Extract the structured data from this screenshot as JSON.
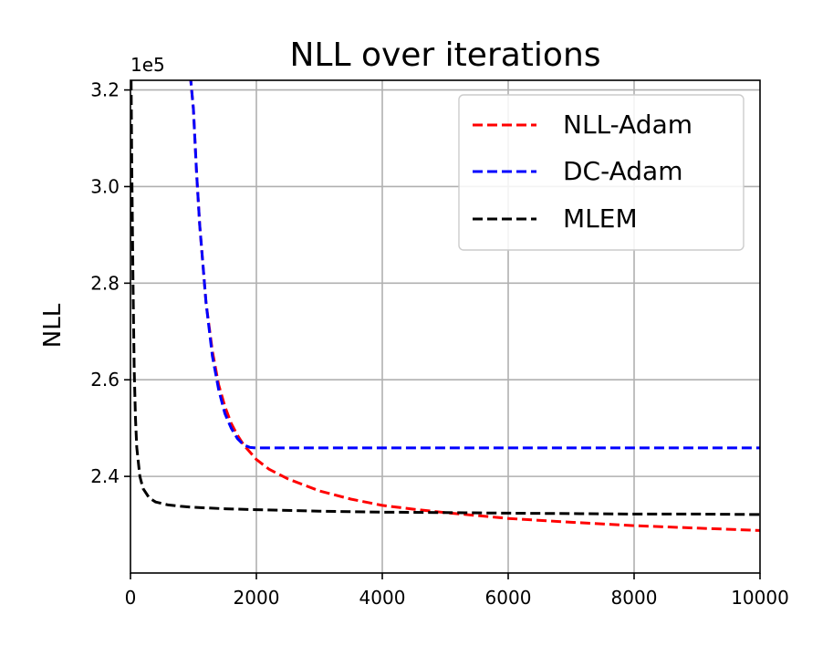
{
  "chart_data": {
    "type": "line",
    "title": "NLL over iterations",
    "xlabel": "",
    "ylabel": "NLL",
    "y_offset_label": "1e5",
    "xlim": [
      0,
      10000
    ],
    "ylim": [
      2.2,
      3.22
    ],
    "xticks": [
      0,
      2000,
      4000,
      6000,
      8000,
      10000
    ],
    "xtick_labels": [
      "0",
      "2000",
      "4000",
      "6000",
      "8000",
      "10000"
    ],
    "yticks": [
      2.4,
      2.6,
      2.8,
      3.0,
      3.2
    ],
    "ytick_labels": [
      "2.4",
      "2.6",
      "2.8",
      "3.0",
      "3.2"
    ],
    "grid": true,
    "legend_position": "top-right",
    "series": [
      {
        "name": "NLL-Adam",
        "color": "#ff0000",
        "dash": "dashed",
        "x": [
          950,
          1000,
          1050,
          1100,
          1200,
          1300,
          1400,
          1500,
          1600,
          1700,
          1800,
          2000,
          2200,
          2500,
          3000,
          3500,
          4000,
          4500,
          5000,
          5500,
          6000,
          7000,
          8000,
          9000,
          10000
        ],
        "y": [
          3.23,
          3.16,
          3.03,
          2.92,
          2.76,
          2.66,
          2.59,
          2.545,
          2.51,
          2.485,
          2.465,
          2.435,
          2.415,
          2.395,
          2.37,
          2.353,
          2.34,
          2.332,
          2.325,
          2.319,
          2.313,
          2.305,
          2.298,
          2.293,
          2.288
        ]
      },
      {
        "name": "DC-Adam",
        "color": "#0000ff",
        "dash": "dashed",
        "x": [
          950,
          1000,
          1050,
          1100,
          1200,
          1300,
          1400,
          1500,
          1600,
          1700,
          1800,
          1900,
          2000,
          2500,
          3000,
          4000,
          5000,
          6000,
          7000,
          8000,
          9000,
          10000
        ],
        "y": [
          3.23,
          3.16,
          3.03,
          2.92,
          2.76,
          2.65,
          2.58,
          2.53,
          2.5,
          2.478,
          2.465,
          2.46,
          2.459,
          2.459,
          2.459,
          2.459,
          2.459,
          2.459,
          2.459,
          2.459,
          2.459,
          2.459
        ]
      },
      {
        "name": "MLEM",
        "color": "#000000",
        "dash": "dashed",
        "x": [
          10,
          20,
          40,
          60,
          80,
          100,
          150,
          200,
          300,
          400,
          600,
          800,
          1000,
          1500,
          2000,
          3000,
          4000,
          5000,
          6000,
          7000,
          8000,
          9000,
          10000
        ],
        "y": [
          3.22,
          3.05,
          2.8,
          2.62,
          2.52,
          2.46,
          2.4,
          2.375,
          2.355,
          2.347,
          2.341,
          2.338,
          2.336,
          2.333,
          2.331,
          2.328,
          2.326,
          2.325,
          2.324,
          2.323,
          2.322,
          2.322,
          2.321
        ]
      }
    ]
  }
}
